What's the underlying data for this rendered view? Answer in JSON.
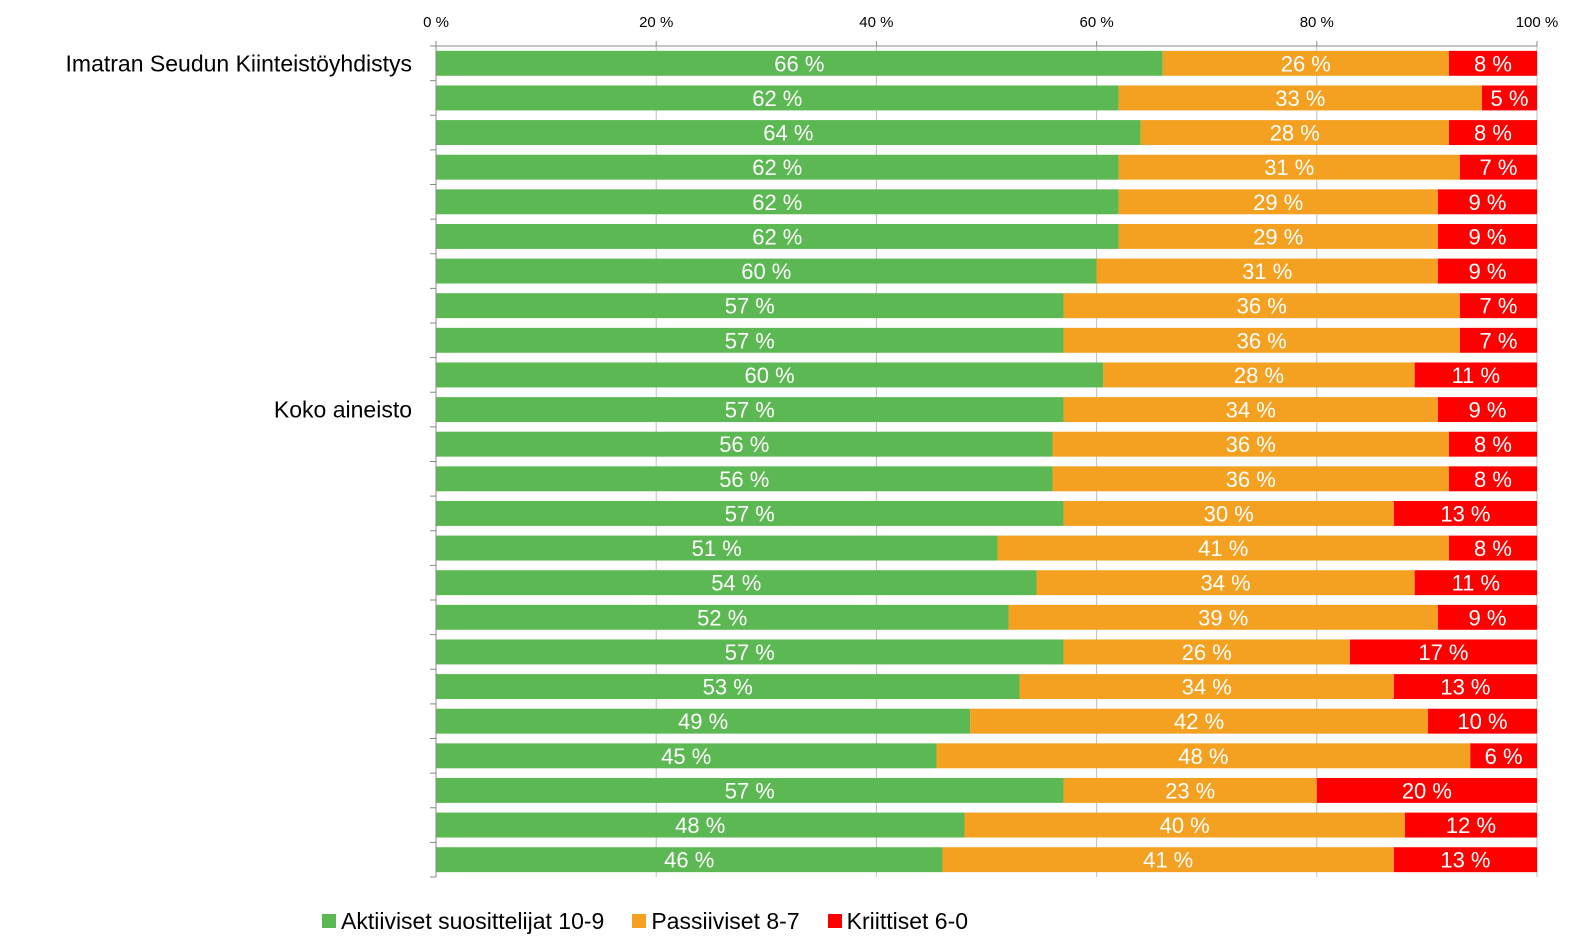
{
  "chart_data": {
    "type": "bar",
    "orientation": "horizontal",
    "stacked": true,
    "xlim": [
      0,
      100
    ],
    "x_ticks": [
      "0 %",
      "20 %",
      "40 %",
      "60 %",
      "80 %",
      "100 %"
    ],
    "x_tick_values": [
      0,
      20,
      40,
      60,
      80,
      100
    ],
    "x_axis_position": "top",
    "category_labels": [
      {
        "row": 0,
        "text": "Imatran Seudun Kiinteistöyhdistys"
      },
      {
        "row": 10,
        "text": "Koko aineisto"
      }
    ],
    "series": [
      {
        "name": "Aktiiviset suosittelijat 10-9",
        "color": "#5cb852",
        "values": [
          66,
          62,
          64,
          62,
          62,
          62,
          60,
          57,
          57,
          60,
          57,
          56,
          56,
          57,
          51,
          54,
          52,
          57,
          53,
          49,
          45,
          57,
          48,
          46
        ],
        "labels": [
          "66 %",
          "62 %",
          "64 %",
          "62 %",
          "62 %",
          "62 %",
          "60 %",
          "57 %",
          "57 %",
          "60 %",
          "57 %",
          "56 %",
          "56 %",
          "57 %",
          "51 %",
          "54 %",
          "52 %",
          "57 %",
          "53 %",
          "49 %",
          "45 %",
          "57 %",
          "48 %",
          "46 %"
        ]
      },
      {
        "name": "Passiiviset 8-7",
        "color": "#f4a020",
        "values": [
          26,
          33,
          28,
          31,
          29,
          29,
          31,
          36,
          36,
          28,
          34,
          36,
          36,
          30,
          41,
          34,
          39,
          26,
          34,
          42,
          48,
          23,
          40,
          41
        ],
        "labels": [
          "26 %",
          "33 %",
          "28 %",
          "31 %",
          "29 %",
          "29 %",
          "31 %",
          "36 %",
          "36 %",
          "28 %",
          "34 %",
          "36 %",
          "36 %",
          "30 %",
          "41 %",
          "34 %",
          "39 %",
          "26 %",
          "34 %",
          "42 %",
          "48 %",
          "23 %",
          "40 %",
          "41 %"
        ]
      },
      {
        "name": "Kriittiset 6-0",
        "color": "#ff0000",
        "values": [
          8,
          5,
          8,
          7,
          9,
          9,
          9,
          7,
          7,
          11,
          9,
          8,
          8,
          13,
          8,
          11,
          9,
          17,
          13,
          10,
          6,
          20,
          12,
          13
        ],
        "labels": [
          "8 %",
          "5 %",
          "8 %",
          "7 %",
          "9 %",
          "9 %",
          "9 %",
          "7 %",
          "7 %",
          "11 %",
          "9 %",
          "8 %",
          "8 %",
          "13 %",
          "8 %",
          "11 %",
          "9 %",
          "17 %",
          "13 %",
          "10 %",
          "6 %",
          "20 %",
          "12 %",
          "13 %"
        ]
      }
    ],
    "legend_position": "bottom",
    "grid": true
  }
}
